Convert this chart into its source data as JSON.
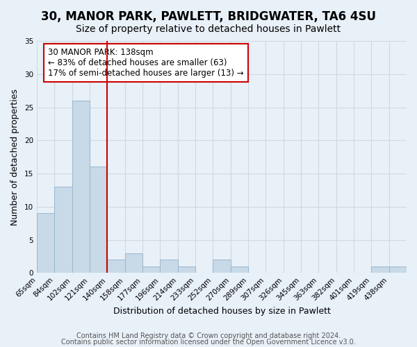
{
  "title": "30, MANOR PARK, PAWLETT, BRIDGWATER, TA6 4SU",
  "subtitle": "Size of property relative to detached houses in Pawlett",
  "xlabel": "Distribution of detached houses by size in Pawlett",
  "ylabel": "Number of detached properties",
  "bar_labels": [
    "65sqm",
    "84sqm",
    "102sqm",
    "121sqm",
    "140sqm",
    "158sqm",
    "177sqm",
    "196sqm",
    "214sqm",
    "233sqm",
    "252sqm",
    "270sqm",
    "289sqm",
    "307sqm",
    "326sqm",
    "345sqm",
    "363sqm",
    "382sqm",
    "401sqm",
    "419sqm",
    "438sqm"
  ],
  "bar_values": [
    9,
    13,
    26,
    16,
    2,
    3,
    1,
    2,
    1,
    0,
    2,
    1,
    0,
    0,
    0,
    0,
    0,
    0,
    0,
    1,
    1
  ],
  "bar_color": "#c8d9e8",
  "bar_edge_color": "#9ab8cc",
  "vline_color": "#cc0000",
  "annotation_text": "30 MANOR PARK: 138sqm\n← 83% of detached houses are smaller (63)\n17% of semi-detached houses are larger (13) →",
  "annotation_box_color": "#ffffff",
  "annotation_box_edge_color": "#cc0000",
  "ylim": [
    0,
    35
  ],
  "yticks": [
    0,
    5,
    10,
    15,
    20,
    25,
    30,
    35
  ],
  "grid_color": "#d0d8e0",
  "background_color": "#e8f0f8",
  "footer_line1": "Contains HM Land Registry data © Crown copyright and database right 2024.",
  "footer_line2": "Contains public sector information licensed under the Open Government Licence v3.0.",
  "title_fontsize": 12,
  "subtitle_fontsize": 10,
  "xlabel_fontsize": 9,
  "ylabel_fontsize": 9,
  "tick_fontsize": 7.5,
  "annotation_fontsize": 8.5,
  "footer_fontsize": 7
}
